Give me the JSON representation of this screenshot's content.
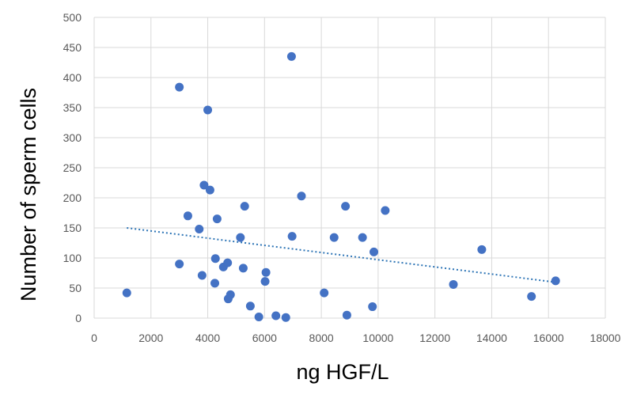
{
  "chart_data": {
    "type": "scatter",
    "title": "",
    "xlabel": "ng HGF/L",
    "ylabel": "Number of sperm cells",
    "xlim": [
      0,
      18000
    ],
    "ylim": [
      0,
      500
    ],
    "x_ticks": [
      "0",
      "2000",
      "4000",
      "6000",
      "8000",
      "10000",
      "12000",
      "14000",
      "16000",
      "18000"
    ],
    "y_ticks": [
      "0",
      "50",
      "100",
      "150",
      "200",
      "250",
      "300",
      "350",
      "400",
      "450",
      "500"
    ],
    "grid": true,
    "legend": "none",
    "marker_color": "#4472C4",
    "trendline": {
      "type": "linear",
      "style": "dotted",
      "color": "#2E75B6",
      "x_range": [
        1150,
        16200
      ],
      "y_start": 150,
      "y_end": 60
    },
    "points": [
      {
        "x": 1150,
        "y": 42
      },
      {
        "x": 3000,
        "y": 384
      },
      {
        "x": 3000,
        "y": 90
      },
      {
        "x": 3300,
        "y": 170
      },
      {
        "x": 3700,
        "y": 148
      },
      {
        "x": 3800,
        "y": 71
      },
      {
        "x": 3870,
        "y": 221
      },
      {
        "x": 4000,
        "y": 346
      },
      {
        "x": 4080,
        "y": 213
      },
      {
        "x": 4250,
        "y": 58
      },
      {
        "x": 4270,
        "y": 99
      },
      {
        "x": 4330,
        "y": 165
      },
      {
        "x": 4550,
        "y": 85
      },
      {
        "x": 4700,
        "y": 92
      },
      {
        "x": 4720,
        "y": 32
      },
      {
        "x": 4800,
        "y": 39
      },
      {
        "x": 5150,
        "y": 134
      },
      {
        "x": 5250,
        "y": 83
      },
      {
        "x": 5300,
        "y": 186
      },
      {
        "x": 5500,
        "y": 20
      },
      {
        "x": 5800,
        "y": 2
      },
      {
        "x": 6020,
        "y": 61
      },
      {
        "x": 6050,
        "y": 76
      },
      {
        "x": 6400,
        "y": 4
      },
      {
        "x": 6750,
        "y": 1
      },
      {
        "x": 6950,
        "y": 435
      },
      {
        "x": 6970,
        "y": 136
      },
      {
        "x": 7300,
        "y": 203
      },
      {
        "x": 8100,
        "y": 42
      },
      {
        "x": 8450,
        "y": 134
      },
      {
        "x": 8850,
        "y": 186
      },
      {
        "x": 8900,
        "y": 5
      },
      {
        "x": 9450,
        "y": 134
      },
      {
        "x": 9800,
        "y": 19
      },
      {
        "x": 9850,
        "y": 110
      },
      {
        "x": 10250,
        "y": 179
      },
      {
        "x": 12650,
        "y": 56
      },
      {
        "x": 13650,
        "y": 114
      },
      {
        "x": 15400,
        "y": 36
      },
      {
        "x": 16250,
        "y": 62
      }
    ]
  }
}
